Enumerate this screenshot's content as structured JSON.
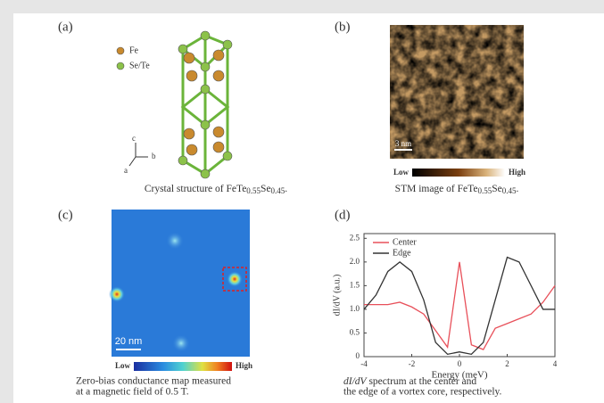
{
  "panels": [
    {
      "label": "(a)",
      "caption": [
        "Crystal structure of FeTe",
        "0.55",
        "Se",
        "0.45",
        "."
      ],
      "legend": [
        "Fe",
        "Se/Te"
      ],
      "axes": [
        "c",
        "b",
        "a"
      ]
    },
    {
      "label": "(b)",
      "caption": [
        "STM image of FeTe",
        "0.55",
        "Se",
        "0.45",
        "."
      ],
      "scale_bar": "3 nm",
      "colorbar": [
        "Low",
        "High"
      ]
    },
    {
      "label": "(c)",
      "caption": [
        "Zero-bias conductance map measured",
        "at a magnetic field of 0.5 T."
      ],
      "scale_bar": "20 nm",
      "colorbar": [
        "Low",
        "High"
      ]
    },
    {
      "label": "(d)",
      "caption": [
        "dI/dV",
        " spectrum at the center and",
        "the edge of a vortex core, respectively."
      ],
      "chart": {
        "type": "line",
        "xlabel": "Energy (meV)",
        "ylabel": "dI/dV (a.u.)",
        "x": [
          -4,
          -3.5,
          -3,
          -2.5,
          -2,
          -1.5,
          -1,
          -0.5,
          0,
          0.5,
          1,
          1.5,
          2,
          2.5,
          3,
          3.5,
          4
        ],
        "series": [
          {
            "name": "Center",
            "color": "#e8505a",
            "values": [
              1.1,
              1.1,
              1.1,
              1.15,
              1.05,
              0.9,
              0.55,
              0.2,
              2.0,
              0.25,
              0.15,
              0.6,
              0.7,
              0.8,
              0.9,
              1.15,
              1.5
            ]
          },
          {
            "name": "Edge",
            "color": "#333333",
            "values": [
              1.0,
              1.3,
              1.8,
              2.0,
              1.8,
              1.2,
              0.3,
              0.05,
              0.1,
              0.05,
              0.3,
              1.2,
              2.1,
              2.0,
              1.5,
              1.0,
              1.0
            ]
          }
        ],
        "xlim": [
          -4,
          4
        ],
        "xticks": [
          -4,
          -2,
          0,
          2,
          4
        ],
        "ylim": [
          0,
          2.6
        ],
        "yticks": [
          0,
          0.5,
          {
            "value": 1,
            "label": "1.0"
          },
          1.5,
          {
            "value": 2,
            "label": "2.0"
          },
          2.5
        ]
      }
    }
  ]
}
